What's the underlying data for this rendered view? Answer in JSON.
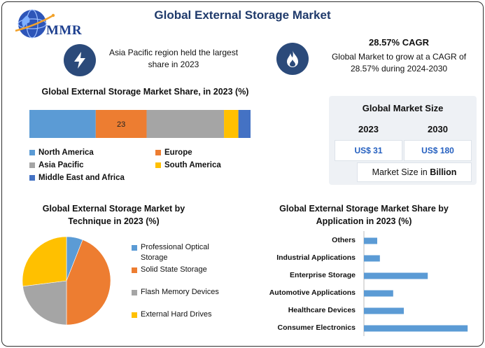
{
  "header": {
    "title": "Global External Storage Market",
    "logo_text": "MMR"
  },
  "highlights": {
    "left_text": "Asia Pacific region held the largest share in 2023",
    "right_title": "28.57% CAGR",
    "right_text": "Global Market to grow at a CAGR of 28.57% during 2024-2030"
  },
  "market_size": {
    "title": "Global Market Size",
    "year1": "2023",
    "year2": "2030",
    "value1": "US$ 31",
    "value2": "US$ 180",
    "unit_prefix": "Market Size in ",
    "unit_bold": "Billion"
  },
  "colors": {
    "blue": "#5b9bd5",
    "orange": "#ed7d31",
    "gray": "#a5a5a5",
    "yellow": "#ffc000",
    "darkblue": "#4472c4",
    "icon_bg": "#2b4a7a",
    "value_text": "#2560c0"
  },
  "icons": {
    "left_highlight": "lightning-bolt-icon",
    "right_highlight": "flame-icon",
    "logo": "globe-icon"
  },
  "chart_data": [
    {
      "type": "bar",
      "orientation": "horizontal-stacked",
      "title": "Global External Storage Market Share, in 2023 (%)",
      "series": [
        {
          "name": "North America",
          "value": 30,
          "color": "#5b9bd5",
          "label": ""
        },
        {
          "name": "Europe",
          "value": 23,
          "color": "#ed7d31",
          "label": "23"
        },
        {
          "name": "Asia Pacific",
          "value": 35,
          "color": "#a5a5a5",
          "label": ""
        },
        {
          "name": "South America",
          "value": 6.5,
          "color": "#ffc000",
          "label": ""
        },
        {
          "name": "Middle East and Africa",
          "value": 5.5,
          "color": "#4472c4",
          "label": ""
        }
      ],
      "xlim": [
        0,
        100
      ],
      "grid": false,
      "legend": "bottom"
    },
    {
      "type": "pie",
      "title": "Global External Storage Market by Technique in 2023 (%)",
      "slices": [
        {
          "name": "Professional Optical Storage",
          "value": 6,
          "color": "#5b9bd5"
        },
        {
          "name": "Solid State Storage",
          "value": 44,
          "color": "#ed7d31"
        },
        {
          "name": "Flash Memory Devices",
          "value": 23,
          "color": "#a5a5a5"
        },
        {
          "name": "External Hard Drives",
          "value": 27,
          "color": "#ffc000"
        }
      ],
      "legend": "right"
    },
    {
      "type": "bar",
      "orientation": "horizontal",
      "title": "Global External Storage Market Share by Application in 2023 (%)",
      "categories": [
        "Others",
        "Industrial Applications",
        "Enterprise Storage",
        "Automotive Applications",
        "Healthcare Devices",
        "Consumer Electronics"
      ],
      "values": [
        5,
        6,
        24,
        11,
        15,
        39
      ],
      "color": "#5b9bd5",
      "xlim": [
        0,
        40
      ],
      "grid": false
    }
  ]
}
